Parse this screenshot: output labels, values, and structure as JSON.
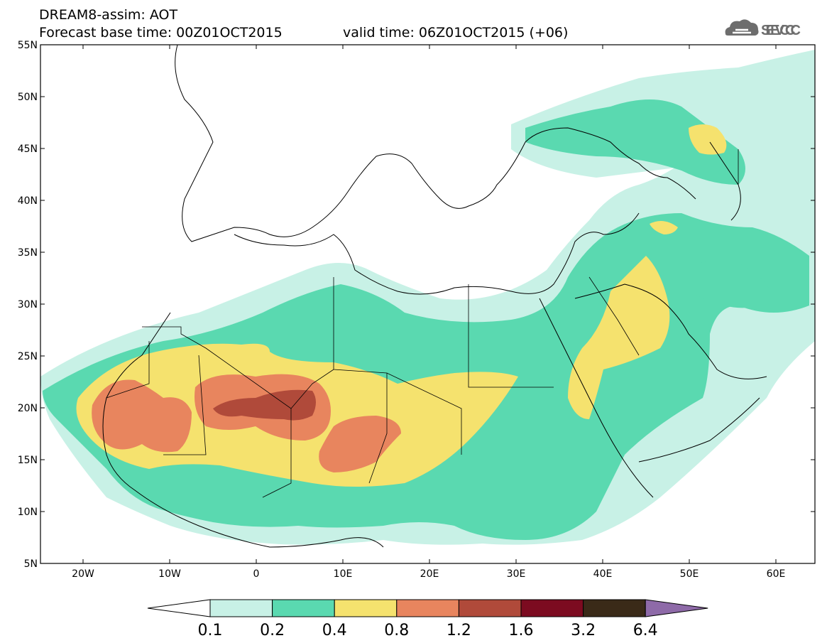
{
  "header": {
    "title": "DREAM8-assim: AOT",
    "forecast_base_label": "Forecast base time: 00Z01OCT2015",
    "valid_time_label": "valid time: 06Z01OCT2015 (+06)"
  },
  "logo": {
    "text": "SEEVCCC",
    "icon": "cloud-icon"
  },
  "map": {
    "lat_labels": [
      "55N",
      "50N",
      "45N",
      "40N",
      "35N",
      "30N",
      "25N",
      "20N",
      "15N",
      "10N",
      "5N"
    ],
    "lon_labels": [
      "20W",
      "10W",
      "0",
      "10E",
      "20E",
      "30E",
      "40E",
      "50E",
      "60E"
    ]
  },
  "colorbar": {
    "labels": [
      "0.1",
      "0.2",
      "0.4",
      "0.8",
      "1.2",
      "1.6",
      "3.2",
      "6.4"
    ],
    "colors": [
      "#ffffff",
      "#c8f1e6",
      "#5ad9b0",
      "#f5e26e",
      "#e8855e",
      "#b04a3a",
      "#7c0b20",
      "#3a2a18",
      "#8e6aa8"
    ]
  }
}
